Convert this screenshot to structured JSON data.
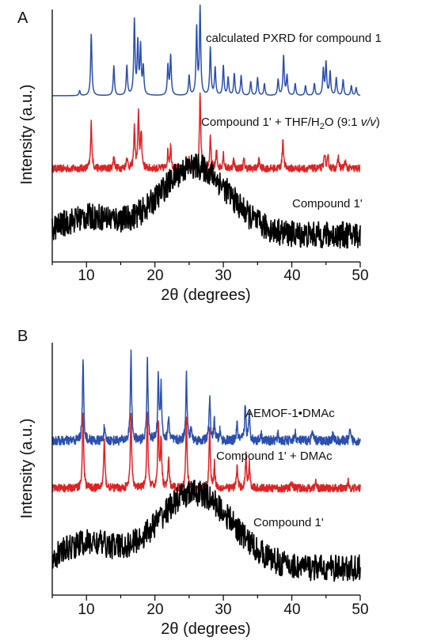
{
  "chart_data": [
    {
      "type": "line",
      "panel": "A",
      "xlabel": "2θ (degrees)",
      "ylabel": "Intensity (a.u.)",
      "xlim": [
        5,
        50
      ],
      "x_ticks": [
        "10",
        "20",
        "30",
        "40",
        "50"
      ],
      "y_ticks": [],
      "grid": false,
      "legend": "none (series labeled inline)",
      "series": [
        {
          "name": "calculated PXRD for compound 1",
          "color": "#2a4fb0",
          "kind": "peaks",
          "peaks": [
            [
              9.0,
              0.05
            ],
            [
              10.7,
              0.62
            ],
            [
              14.0,
              0.3
            ],
            [
              15.9,
              0.3
            ],
            [
              17.0,
              0.75
            ],
            [
              17.5,
              0.52
            ],
            [
              17.9,
              0.48
            ],
            [
              18.3,
              0.28
            ],
            [
              21.9,
              0.3
            ],
            [
              22.3,
              0.4
            ],
            [
              25.0,
              0.2
            ],
            [
              26.1,
              0.68
            ],
            [
              26.6,
              0.88
            ],
            [
              28.1,
              0.48
            ],
            [
              28.8,
              0.28
            ],
            [
              30.0,
              0.3
            ],
            [
              30.7,
              0.18
            ],
            [
              31.6,
              0.22
            ],
            [
              32.6,
              0.2
            ],
            [
              34.0,
              0.14
            ],
            [
              35.0,
              0.18
            ],
            [
              36.0,
              0.12
            ],
            [
              38.0,
              0.16
            ],
            [
              38.8,
              0.4
            ],
            [
              39.3,
              0.2
            ],
            [
              40.5,
              0.12
            ],
            [
              42.0,
              0.1
            ],
            [
              43.3,
              0.12
            ],
            [
              44.6,
              0.26
            ],
            [
              45.0,
              0.33
            ],
            [
              45.6,
              0.24
            ],
            [
              46.5,
              0.18
            ],
            [
              47.5,
              0.16
            ],
            [
              48.7,
              0.1
            ],
            [
              49.4,
              0.08
            ]
          ],
          "noise": 0.0
        },
        {
          "name": "Compound 1' + THF/H2O (9:1 v/v)",
          "color": "#e02222",
          "kind": "peaks",
          "peaks": [
            [
              10.7,
              0.62
            ],
            [
              14.0,
              0.18
            ],
            [
              15.9,
              0.16
            ],
            [
              17.0,
              0.55
            ],
            [
              17.6,
              0.72
            ],
            [
              18.0,
              0.48
            ],
            [
              21.9,
              0.22
            ],
            [
              22.3,
              0.3
            ],
            [
              25.0,
              0.12
            ],
            [
              26.6,
              1.0
            ],
            [
              28.1,
              0.4
            ],
            [
              29.0,
              0.22
            ],
            [
              30.0,
              0.2
            ],
            [
              31.5,
              0.12
            ],
            [
              33.0,
              0.12
            ],
            [
              35.2,
              0.12
            ],
            [
              38.7,
              0.4
            ],
            [
              44.8,
              0.22
            ],
            [
              45.3,
              0.14
            ],
            [
              46.8,
              0.15
            ],
            [
              47.8,
              0.1
            ]
          ],
          "noise": 0.05
        },
        {
          "name": "Compound 1'",
          "color": "#000000",
          "kind": "amorphous",
          "baseline": 0.15,
          "humps": [
            [
              10.5,
              0.16,
              4.0
            ],
            [
              25.8,
              0.62,
              5.0
            ]
          ],
          "noise": 0.12
        }
      ]
    },
    {
      "type": "line",
      "panel": "B",
      "xlabel": "2θ (degrees)",
      "ylabel": "Intensity (a.u.)",
      "xlim": [
        5,
        50
      ],
      "x_ticks": [
        "10",
        "20",
        "30",
        "40",
        "50"
      ],
      "y_ticks": [],
      "grid": false,
      "legend": "none (series labeled inline)",
      "series": [
        {
          "name": "AEMOF-1•DMAc",
          "color": "#2a4fb0",
          "kind": "peaks",
          "peaks": [
            [
              9.5,
              1.0
            ],
            [
              12.6,
              0.15
            ],
            [
              16.5,
              1.1
            ],
            [
              18.9,
              1.0
            ],
            [
              20.5,
              0.8
            ],
            [
              20.9,
              0.7
            ],
            [
              22.0,
              0.3
            ],
            [
              24.6,
              0.85
            ],
            [
              25.3,
              0.15
            ],
            [
              28.0,
              0.55
            ],
            [
              28.7,
              0.25
            ],
            [
              29.5,
              0.12
            ],
            [
              32.0,
              0.2
            ],
            [
              33.2,
              0.45
            ],
            [
              33.8,
              0.35
            ],
            [
              35.5,
              0.1
            ],
            [
              38.0,
              0.08
            ],
            [
              40.5,
              0.1
            ],
            [
              43.0,
              0.12
            ],
            [
              46.0,
              0.08
            ],
            [
              48.5,
              0.12
            ]
          ],
          "noise": 0.06
        },
        {
          "name": "Compound 1' + DMAc",
          "color": "#e02222",
          "kind": "peaks",
          "peaks": [
            [
              9.5,
              0.95
            ],
            [
              12.6,
              0.6
            ],
            [
              16.5,
              0.95
            ],
            [
              18.9,
              0.95
            ],
            [
              20.5,
              0.85
            ],
            [
              20.9,
              0.6
            ],
            [
              22.0,
              0.35
            ],
            [
              24.6,
              0.95
            ],
            [
              28.0,
              0.75
            ],
            [
              28.7,
              0.3
            ],
            [
              32.0,
              0.28
            ],
            [
              33.3,
              0.4
            ],
            [
              33.8,
              0.3
            ],
            [
              40.0,
              0.08
            ],
            [
              43.5,
              0.08
            ],
            [
              48.2,
              0.1
            ]
          ],
          "noise": 0.05
        },
        {
          "name": "Compound 1'",
          "color": "#000000",
          "kind": "amorphous",
          "baseline": 0.15,
          "humps": [
            [
              10.0,
              0.22,
              4.0
            ],
            [
              25.8,
              0.68,
              5.5
            ]
          ],
          "noise": 0.12
        }
      ]
    }
  ],
  "panels": [
    {
      "letter": "A",
      "xlabel": "2θ (degrees)",
      "ylabel": "Intensity (a.u.)",
      "ticks": [
        "10",
        "20",
        "30",
        "40",
        "50"
      ],
      "labels": {
        "calc": "calculated PXRD for compound 1",
        "thf_main": "Compound 1' + THF/H",
        "thf_sub": "2",
        "thf_o": "O (9:1 ",
        "thf_vv": "v/v",
        "thf_close": ")",
        "amorph": "Compound 1'"
      }
    },
    {
      "letter": "B",
      "xlabel": "2θ (degrees)",
      "ylabel": "Intensity (a.u.)",
      "ticks": [
        "10",
        "20",
        "30",
        "40",
        "50"
      ],
      "labels": {
        "aemof": "AEMOF-1•DMAc",
        "dmac": "Compound 1' + DMAc",
        "amorph": "Compound 1'"
      }
    }
  ]
}
